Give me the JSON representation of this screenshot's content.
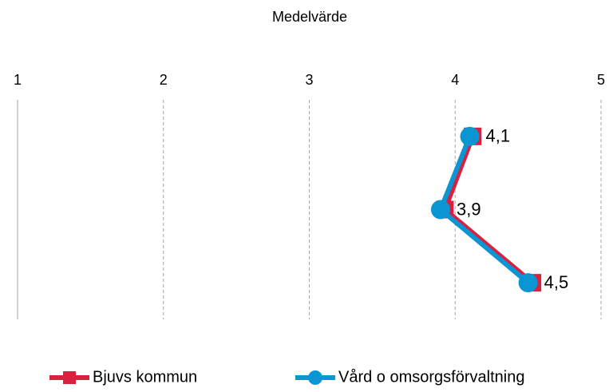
{
  "chart_data": {
    "type": "line",
    "orientation": "horizontal",
    "title": "Medelvärde",
    "categories": [
      null,
      null,
      null
    ],
    "xlim": [
      1,
      5
    ],
    "xticks": [
      1,
      2,
      3,
      4,
      5
    ],
    "grid": true,
    "legend": "bottom",
    "series": [
      {
        "name": "Bjuvs kommun",
        "color": "#d8203f",
        "marker": "square",
        "values": [
          4.12,
          3.93,
          4.53
        ]
      },
      {
        "name": "Vård o omsorgsförvaltning",
        "color": "#0b96d3",
        "marker": "circle",
        "values": [
          4.1,
          3.9,
          4.5
        ],
        "value_labels": [
          "4,1",
          "3,9",
          "4,5"
        ]
      }
    ]
  }
}
